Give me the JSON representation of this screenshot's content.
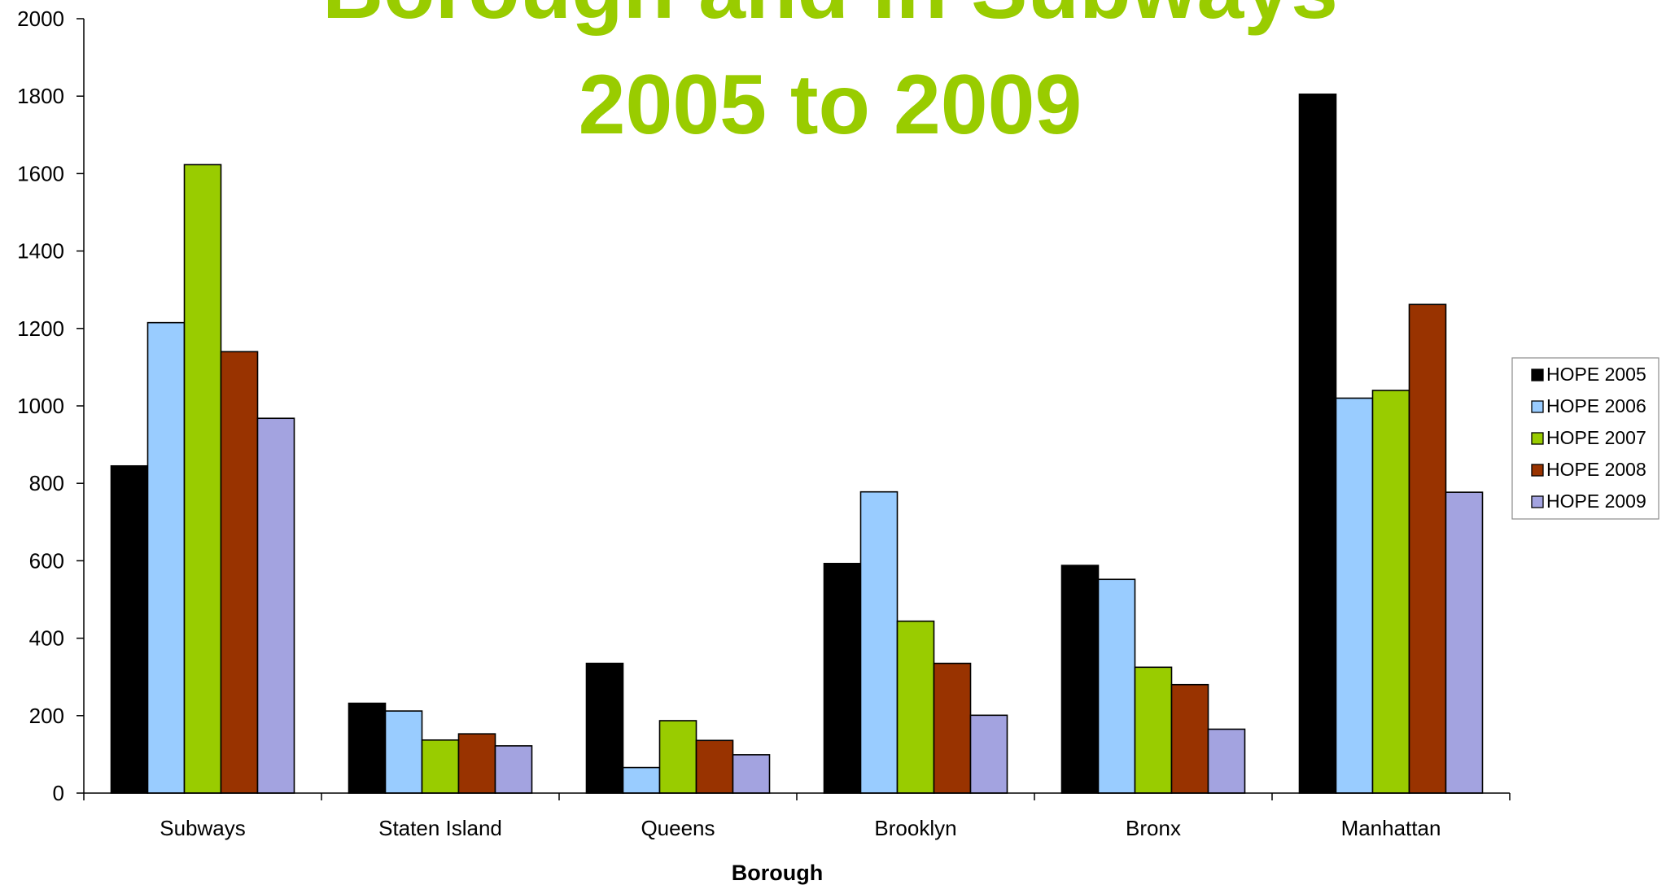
{
  "chart_data": {
    "type": "bar",
    "title_lines": [
      "Borough and in Subways",
      "2005 to 2009"
    ],
    "title_color": "#99cc00",
    "xlabel": "Borough",
    "ylabel": "",
    "ylim": [
      0,
      2000
    ],
    "ytick_step": 200,
    "yticks": [
      "0",
      "200",
      "400",
      "600",
      "800",
      "1000",
      "1200",
      "1400",
      "1600",
      "1800",
      "2000"
    ],
    "grid": false,
    "legend_position": "right",
    "categories": [
      "Subways",
      "Staten Island",
      "Queens",
      "Brooklyn",
      "Bronx",
      "Manhattan"
    ],
    "series": [
      {
        "name": "HOPE 2005",
        "color": "#000000",
        "values": [
          845,
          232,
          335,
          593,
          588,
          1805
        ]
      },
      {
        "name": "HOPE 2006",
        "color": "#99ccff",
        "values": [
          1215,
          212,
          66,
          778,
          552,
          1020
        ]
      },
      {
        "name": "HOPE 2007",
        "color": "#99cc00",
        "values": [
          1623,
          137,
          187,
          444,
          325,
          1040
        ]
      },
      {
        "name": "HOPE 2008",
        "color": "#993300",
        "values": [
          1140,
          153,
          136,
          335,
          280,
          1262
        ]
      },
      {
        "name": "HOPE 2009",
        "color": "#a3a3e0",
        "values": [
          968,
          122,
          99,
          201,
          165,
          777
        ]
      }
    ]
  }
}
